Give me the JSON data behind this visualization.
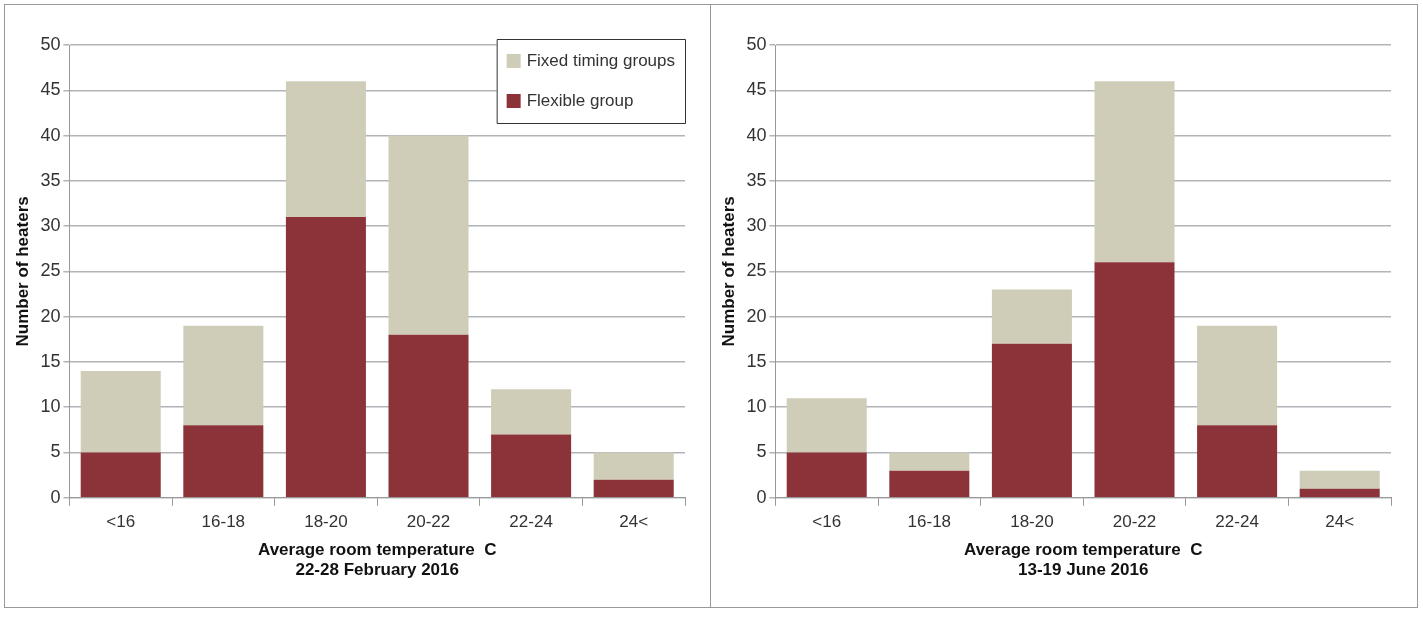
{
  "chart_data": [
    {
      "type": "bar",
      "stacked": true,
      "categories": [
        "<16",
        "16-18",
        "18-20",
        "20-22",
        "22-24",
        "24<"
      ],
      "series": [
        {
          "name": "Flexible group",
          "color": "#8b3338",
          "values": [
            5,
            8,
            31,
            18,
            7,
            2
          ]
        },
        {
          "name": "Fixed timing groups",
          "color": "#cfcdb8",
          "values": [
            9,
            11,
            15,
            22,
            5,
            3
          ]
        }
      ],
      "xlabel": "Average room temperature  C",
      "ylabel": "Number of heaters",
      "annotations": [
        "22-28 February 2016"
      ],
      "ylim": [
        0,
        50
      ],
      "yticks": [
        0,
        5,
        10,
        15,
        20,
        25,
        30,
        35,
        40,
        45,
        50
      ],
      "grid": "y",
      "legend": "top right"
    },
    {
      "type": "bar",
      "stacked": true,
      "categories": [
        "<16",
        "16-18",
        "18-20",
        "20-22",
        "22-24",
        "24<"
      ],
      "series": [
        {
          "color": "#8b3338",
          "values": [
            5,
            3,
            17,
            26,
            8,
            1
          ]
        },
        {
          "color": "#cfcdb8",
          "values": [
            6,
            2,
            6,
            20,
            11,
            2
          ]
        }
      ],
      "xlabel": "Average room temperature  C",
      "ylabel": "Number of heaters",
      "annotations": [
        "13-19 June 2016"
      ],
      "ylim": [
        0,
        50
      ],
      "yticks": [
        0,
        5,
        10,
        15,
        20,
        25,
        30,
        35,
        40,
        45,
        50
      ],
      "grid": "y"
    }
  ]
}
